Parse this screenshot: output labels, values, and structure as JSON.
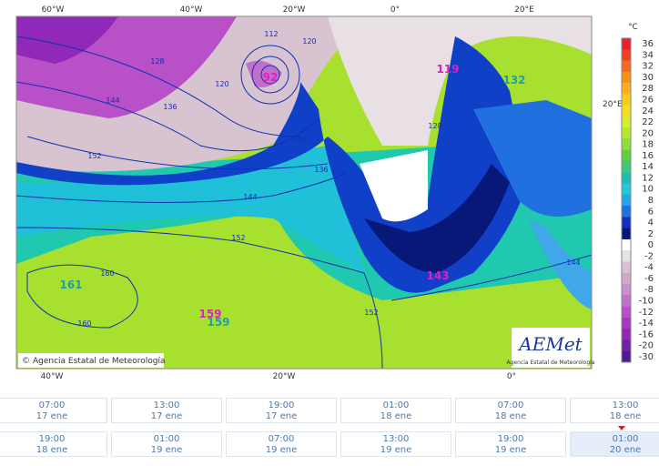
{
  "map": {
    "lon_top": [
      "60°W",
      "40°W",
      "20°W",
      "0°",
      "20°E"
    ],
    "lon_bottom": [
      "40°W",
      "20°W",
      "0°"
    ],
    "lat_right": [
      "20°E"
    ],
    "contours": [
      "112",
      "120",
      "128",
      "120",
      "136",
      "144",
      "128",
      "136",
      "152",
      "144",
      "152",
      "160",
      "160",
      "152",
      "144",
      "128"
    ],
    "centers": [
      {
        "label": "92",
        "color": "#e020c0"
      },
      {
        "label": "119",
        "color": "#e020c0"
      },
      {
        "label": "132",
        "color": "#20a0a0"
      },
      {
        "label": "143",
        "color": "#e020c0"
      },
      {
        "label": "161",
        "color": "#20a0a0"
      },
      {
        "label": "159",
        "color": "#e020c0"
      },
      {
        "label": "159",
        "color": "#20a0a0"
      }
    ],
    "copyright": "Agencia Estatal de Meteorología"
  },
  "logo": {
    "title": "AEMet",
    "subtitle": "Agencia Estatal de Meteorología"
  },
  "legend": {
    "unit": "°C",
    "labels": [
      "36",
      "34",
      "32",
      "30",
      "28",
      "26",
      "24",
      "22",
      "20",
      "18",
      "16",
      "14",
      "12",
      "10",
      "8",
      "6",
      "4",
      "2",
      "0",
      "-2",
      "-4",
      "-6",
      "-8",
      "-10",
      "-12",
      "-14",
      "-16",
      "-20",
      "-30"
    ],
    "colors": [
      "#e8202a",
      "#ee4020",
      "#f26a1e",
      "#f7901c",
      "#f9b01c",
      "#f8cc1c",
      "#f0e020",
      "#d8ec28",
      "#b4e830",
      "#8cde38",
      "#5cd040",
      "#3cc878",
      "#20bcb0",
      "#20c8d8",
      "#20a8e8",
      "#2070e0",
      "#1030c0",
      "#081878",
      "#ffffff",
      "#e8e0e4",
      "#d8c4d0",
      "#d0a8c8",
      "#c890c8",
      "#c070c8",
      "#b850c8",
      "#a838c0",
      "#9028b8",
      "#7020a8",
      "#501890"
    ]
  },
  "times": [
    [
      "07:00",
      "17 ene"
    ],
    [
      "13:00",
      "17 ene"
    ],
    [
      "19:00",
      "17 ene"
    ],
    [
      "01:00",
      "18 ene"
    ],
    [
      "07:00",
      "18 ene"
    ],
    [
      "13:00",
      "18 ene"
    ],
    [
      "19:00",
      "18 ene"
    ],
    [
      "01:00",
      "19 ene"
    ],
    [
      "07:00",
      "19 ene"
    ],
    [
      "13:00",
      "19 ene"
    ],
    [
      "19:00",
      "19 ene"
    ],
    [
      "01:00",
      "20 ene"
    ]
  ]
}
